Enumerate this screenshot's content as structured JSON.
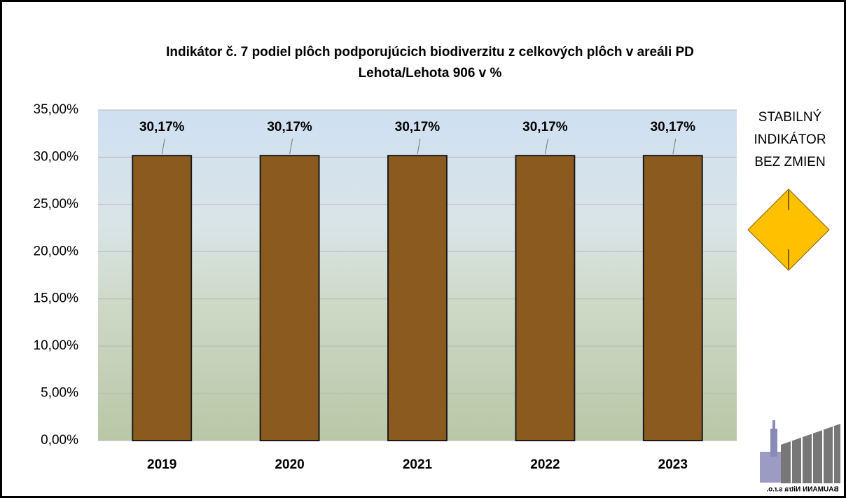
{
  "chart_data": {
    "type": "bar",
    "title": [
      "Indikátor č. 7 podiel plôch podporujúcich biodiverzitu z celkových plôch v areáli PD",
      "Lehota/Lehota 906 v %"
    ],
    "categories": [
      "2019",
      "2020",
      "2021",
      "2022",
      "2023"
    ],
    "values": [
      30.17,
      30.17,
      30.17,
      30.17,
      30.17
    ],
    "value_labels": [
      "30,17%",
      "30,17%",
      "30,17%",
      "30,17%",
      "30,17%"
    ],
    "color": "#8b5a1e",
    "ylim": [
      0,
      35
    ],
    "yticks": [
      {
        "value": 0,
        "label": "0,00%"
      },
      {
        "value": 5,
        "label": "5,00%"
      },
      {
        "value": 10,
        "label": "10,00%"
      },
      {
        "value": 15,
        "label": "15,00%"
      },
      {
        "value": 20,
        "label": "20,00%"
      },
      {
        "value": 25,
        "label": "25,00%"
      },
      {
        "value": 30,
        "label": "30,00%"
      },
      {
        "value": 35,
        "label": "35,00%"
      }
    ],
    "grid": true,
    "annotation": [
      "STABILNÝ",
      "INDIKÁTOR",
      "BEZ ZMIEN"
    ],
    "logo_text": "BAUMANN Nitra s.r.o."
  }
}
